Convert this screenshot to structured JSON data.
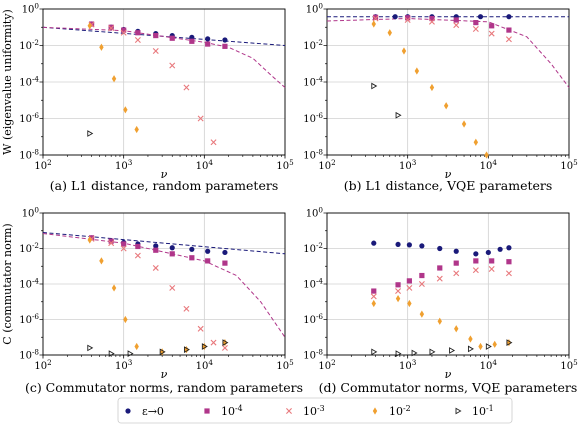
{
  "figure": {
    "legend": [
      {
        "label": "ε→0",
        "marker": "circle",
        "color": "#1a1a7a"
      },
      {
        "label": "10^-4",
        "marker": "square",
        "color": "#b0368a"
      },
      {
        "label": "10^-3",
        "marker": "cross",
        "color": "#e8787c"
      },
      {
        "label": "10^-2",
        "marker": "diamond",
        "color": "#f0a030"
      },
      {
        "label": "10^-1",
        "marker": "tri",
        "color": "#222222"
      }
    ],
    "legend_position": "bottom-center"
  },
  "chart_data": [
    {
      "type": "scatter",
      "caption": "(a) L1 distance, random parameters",
      "xlabel": "ν",
      "ylabel": "W (eigenvalue uniformity)",
      "xscale": "log",
      "yscale": "log",
      "xlim": [
        100,
        100000
      ],
      "ylim": [
        1e-08,
        1
      ],
      "xticks": [
        "10^2",
        "10^3",
        "10^4",
        "10^5"
      ],
      "yticks": [
        "10^-8",
        "10^-6",
        "10^-4",
        "10^-2",
        "10^0"
      ],
      "grid": true,
      "series": [
        {
          "marker": "circle",
          "color": "#1a1a7a",
          "points": [
            [
              400,
              0.15
            ],
            [
              700,
              0.1
            ],
            [
              1000,
              0.075
            ],
            [
              1500,
              0.06
            ],
            [
              2500,
              0.045
            ],
            [
              4000,
              0.035
            ],
            [
              7000,
              0.028
            ],
            [
              11000,
              0.023
            ],
            [
              18000,
              0.02
            ]
          ]
        },
        {
          "marker": "square",
          "color": "#b0368a",
          "points": [
            [
              400,
              0.15
            ],
            [
              700,
              0.1
            ],
            [
              1000,
              0.07
            ],
            [
              1500,
              0.05
            ],
            [
              2500,
              0.035
            ],
            [
              4000,
              0.025
            ],
            [
              7000,
              0.017
            ],
            [
              11000,
              0.012
            ],
            [
              18000,
              0.009
            ]
          ]
        },
        {
          "marker": "cross",
          "color": "#e8787c",
          "points": [
            [
              400,
              0.14
            ],
            [
              700,
              0.09
            ],
            [
              1000,
              0.05
            ],
            [
              1500,
              0.02
            ],
            [
              2500,
              0.005
            ],
            [
              4000,
              0.0008
            ],
            [
              6000,
              5e-05
            ],
            [
              9000,
              1e-06
            ],
            [
              13000,
              5e-08
            ],
            [
              18000,
              8e-09
            ]
          ]
        },
        {
          "marker": "diamond",
          "color": "#f0a030",
          "points": [
            [
              380,
              0.12
            ],
            [
              530,
              0.008
            ],
            [
              760,
              0.00015
            ],
            [
              1050,
              3e-06
            ],
            [
              1450,
              2.5e-07
            ]
          ]
        },
        {
          "marker": "tri",
          "color": "#222222",
          "points": [
            [
              380,
              1.5e-07
            ]
          ]
        }
      ],
      "fit_lines": [
        {
          "color": "#1a1a7a",
          "style": "dashed",
          "points": [
            [
              100,
              0.1
            ],
            [
              100000,
              0.01
            ]
          ]
        },
        {
          "color": "#b0368a",
          "style": "dashed",
          "points": [
            [
              100,
              0.1
            ],
            [
              1000,
              0.065
            ],
            [
              10000,
              0.015
            ],
            [
              20000,
              0.008
            ],
            [
              40000,
              0.002
            ],
            [
              70000,
              0.0002
            ],
            [
              100000,
              5e-05
            ]
          ]
        }
      ]
    },
    {
      "type": "scatter",
      "caption": "(b) L1 distance, VQE parameters",
      "xlabel": "ν",
      "ylabel": "",
      "xscale": "log",
      "yscale": "log",
      "xlim": [
        100,
        100000
      ],
      "ylim": [
        1e-08,
        1
      ],
      "xticks": [
        "10^2",
        "10^3",
        "10^4",
        "10^5"
      ],
      "yticks": [
        "10^-8",
        "10^-6",
        "10^-4",
        "10^-2",
        "10^0"
      ],
      "grid": true,
      "series": [
        {
          "marker": "circle",
          "color": "#1a1a7a",
          "points": [
            [
              400,
              0.38
            ],
            [
              700,
              0.38
            ],
            [
              1000,
              0.38
            ],
            [
              2000,
              0.38
            ],
            [
              4000,
              0.38
            ],
            [
              8000,
              0.38
            ],
            [
              18000,
              0.38
            ]
          ]
        },
        {
          "marker": "square",
          "color": "#b0368a",
          "points": [
            [
              400,
              0.35
            ],
            [
              1000,
              0.33
            ],
            [
              2000,
              0.3
            ],
            [
              4000,
              0.25
            ],
            [
              7000,
              0.18
            ],
            [
              11000,
              0.12
            ],
            [
              18000,
              0.07
            ]
          ]
        },
        {
          "marker": "cross",
          "color": "#e8787c",
          "points": [
            [
              400,
              0.3
            ],
            [
              1000,
              0.25
            ],
            [
              2000,
              0.2
            ],
            [
              4000,
              0.13
            ],
            [
              7000,
              0.08
            ],
            [
              11000,
              0.045
            ],
            [
              18000,
              0.022
            ]
          ]
        },
        {
          "marker": "diamond",
          "color": "#f0a030",
          "points": [
            [
              380,
              0.15
            ],
            [
              600,
              0.05
            ],
            [
              900,
              0.005
            ],
            [
              1300,
              0.0004
            ],
            [
              2000,
              5e-05
            ],
            [
              3000,
              5e-06
            ],
            [
              5000,
              5e-07
            ],
            [
              7000,
              5e-08
            ],
            [
              9500,
              1e-08
            ]
          ]
        },
        {
          "marker": "tri",
          "color": "#222222",
          "points": [
            [
              380,
              6e-05
            ],
            [
              760,
              1.5e-06
            ]
          ]
        }
      ],
      "fit_lines": [
        {
          "color": "#1a1a7a",
          "style": "dashed",
          "points": [
            [
              100,
              0.38
            ],
            [
              100000,
              0.38
            ]
          ]
        },
        {
          "color": "#b0368a",
          "style": "dashed",
          "points": [
            [
              100,
              0.22
            ],
            [
              1000,
              0.3
            ],
            [
              10000,
              0.2
            ],
            [
              30000,
              0.03
            ],
            [
              60000,
              0.001
            ],
            [
              100000,
              5e-05
            ]
          ]
        }
      ]
    },
    {
      "type": "scatter",
      "caption": "(c) Commutator norms, random parameters",
      "xlabel": "ν",
      "ylabel": "C (commutator norm)",
      "xscale": "log",
      "yscale": "log",
      "xlim": [
        100,
        100000
      ],
      "ylim": [
        1e-08,
        1
      ],
      "xticks": [
        "10^2",
        "10^3",
        "10^4",
        "10^5"
      ],
      "yticks": [
        "10^-8",
        "10^-6",
        "10^-4",
        "10^-2",
        "10^0"
      ],
      "grid": true,
      "series": [
        {
          "marker": "circle",
          "color": "#1a1a7a",
          "points": [
            [
              400,
              0.04
            ],
            [
              700,
              0.028
            ],
            [
              1000,
              0.022
            ],
            [
              1500,
              0.018
            ],
            [
              2500,
              0.014
            ],
            [
              4000,
              0.011
            ],
            [
              7000,
              0.009
            ],
            [
              11000,
              0.007
            ],
            [
              18000,
              0.006
            ]
          ]
        },
        {
          "marker": "square",
          "color": "#b0368a",
          "points": [
            [
              400,
              0.04
            ],
            [
              700,
              0.026
            ],
            [
              1000,
              0.018
            ],
            [
              1500,
              0.013
            ],
            [
              2500,
              0.008
            ],
            [
              4000,
              0.005
            ],
            [
              7000,
              0.003
            ],
            [
              11000,
              0.002
            ],
            [
              18000,
              0.0015
            ]
          ]
        },
        {
          "marker": "cross",
          "color": "#e8787c",
          "points": [
            [
              400,
              0.035
            ],
            [
              700,
              0.02
            ],
            [
              1000,
              0.01
            ],
            [
              1500,
              0.004
            ],
            [
              2500,
              0.0008
            ],
            [
              4000,
              6e-05
            ],
            [
              6000,
              4e-06
            ],
            [
              9000,
              3e-07
            ],
            [
              13000,
              5e-08
            ],
            [
              18000,
              2.5e-08
            ]
          ]
        },
        {
          "marker": "diamond",
          "color": "#f0a030",
          "points": [
            [
              380,
              0.03
            ],
            [
              530,
              0.002
            ],
            [
              760,
              6e-05
            ],
            [
              1050,
              1e-06
            ],
            [
              1450,
              3e-08
            ],
            [
              3000,
              1.5e-08
            ],
            [
              6000,
              2e-08
            ],
            [
              10000,
              3e-08
            ],
            [
              18000,
              5e-08
            ]
          ]
        },
        {
          "marker": "tri",
          "color": "#222222",
          "points": [
            [
              380,
              2.5e-08
            ],
            [
              700,
              1.2e-08
            ],
            [
              1200,
              1.2e-08
            ],
            [
              3000,
              1.5e-08
            ],
            [
              6000,
              2e-08
            ],
            [
              10000,
              3e-08
            ],
            [
              18000,
              5e-08
            ]
          ]
        }
      ],
      "fit_lines": [
        {
          "color": "#1a1a7a",
          "style": "dashed",
          "points": [
            [
              100,
              0.08
            ],
            [
              100000,
              0.005
            ]
          ]
        },
        {
          "color": "#b0368a",
          "style": "dashed",
          "points": [
            [
              100,
              0.07
            ],
            [
              1000,
              0.02
            ],
            [
              10000,
              0.002
            ],
            [
              25000,
              0.0003
            ],
            [
              50000,
              1e-05
            ],
            [
              100000,
              1e-07
            ]
          ]
        }
      ]
    },
    {
      "type": "scatter",
      "caption": "(d) Commutator norms, VQE parameters",
      "xlabel": "ν",
      "ylabel": "",
      "xscale": "log",
      "yscale": "log",
      "xlim": [
        100,
        100000
      ],
      "ylim": [
        1e-08,
        1
      ],
      "xticks": [
        "10^2",
        "10^3",
        "10^4",
        "10^5"
      ],
      "yticks": [
        "10^-8",
        "10^-6",
        "10^-4",
        "10^-2",
        "10^0"
      ],
      "grid": true,
      "series": [
        {
          "marker": "circle",
          "color": "#1a1a7a",
          "points": [
            [
              380,
              0.02
            ],
            [
              760,
              0.017
            ],
            [
              1050,
              0.016
            ],
            [
              1500,
              0.014
            ],
            [
              2500,
              0.01
            ],
            [
              4000,
              0.007
            ],
            [
              7000,
              0.005
            ],
            [
              10000,
              0.006
            ],
            [
              14000,
              0.009
            ],
            [
              18000,
              0.011
            ]
          ]
        },
        {
          "marker": "square",
          "color": "#b0368a",
          "points": [
            [
              380,
              4e-05
            ],
            [
              760,
              9e-05
            ],
            [
              1050,
              0.00015
            ],
            [
              1500,
              0.0003
            ],
            [
              2500,
              0.0008
            ],
            [
              4000,
              0.0015
            ],
            [
              7000,
              0.002
            ],
            [
              11000,
              0.002
            ],
            [
              18000,
              0.0018
            ]
          ]
        },
        {
          "marker": "cross",
          "color": "#e8787c",
          "points": [
            [
              380,
              2e-05
            ],
            [
              760,
              4e-05
            ],
            [
              1050,
              6e-05
            ],
            [
              1500,
              0.0001
            ],
            [
              2500,
              0.0002
            ],
            [
              4000,
              0.0004
            ],
            [
              7000,
              0.0006
            ],
            [
              11000,
              0.0007
            ],
            [
              18000,
              0.0004
            ]
          ]
        },
        {
          "marker": "diamond",
          "color": "#f0a030",
          "points": [
            [
              380,
              8e-06
            ],
            [
              760,
              1.5e-05
            ],
            [
              1050,
              8e-06
            ],
            [
              1500,
              2e-06
            ],
            [
              2500,
              8e-07
            ],
            [
              4000,
              3e-07
            ],
            [
              6000,
              8e-08
            ],
            [
              8000,
              3e-08
            ],
            [
              12000,
              4e-08
            ],
            [
              18000,
              5e-08
            ]
          ]
        },
        {
          "marker": "tri",
          "color": "#222222",
          "points": [
            [
              380,
              1.5e-08
            ],
            [
              760,
              1.2e-08
            ],
            [
              1200,
              1.3e-08
            ],
            [
              2000,
              1.5e-08
            ],
            [
              3500,
              1.8e-08
            ],
            [
              6000,
              2.2e-08
            ],
            [
              10000,
              3e-08
            ],
            [
              18000,
              5e-08
            ]
          ]
        }
      ],
      "fit_lines": []
    }
  ]
}
